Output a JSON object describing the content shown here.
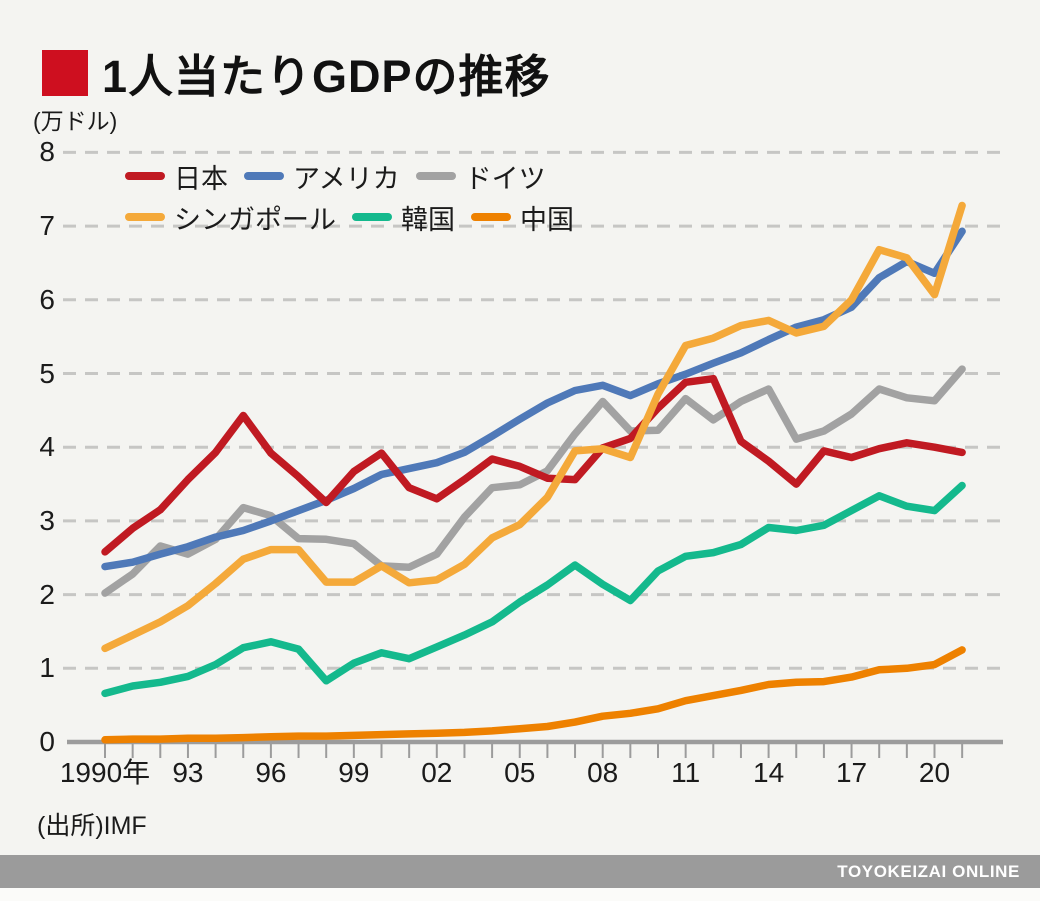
{
  "page": {
    "title": "1人当たりGDPの推移",
    "y_axis_unit": "(万ドル)",
    "source": "(出所)IMF",
    "footer_brand": "TOYOKEIZAI ONLINE"
  },
  "colors": {
    "title_bullet": "#ce0f1f",
    "background": "#f4f4f1",
    "footer_bar": "#9b9b9b",
    "grid": "#c6c6c4",
    "axis": "#9c9c9c",
    "text": "#1b1b1b"
  },
  "chart_data": {
    "type": "line",
    "title": "1人当たりGDPの推移",
    "ylabel": "(万ドル)",
    "xlabel": "",
    "source": "(出所)IMF",
    "ylim": [
      0,
      8
    ],
    "y_ticks": [
      0,
      1,
      2,
      3,
      4,
      5,
      6,
      7,
      8
    ],
    "grid": "dashed-horizontal",
    "legend_position": "top-left-inside",
    "x": [
      1990,
      1991,
      1992,
      1993,
      1994,
      1995,
      1996,
      1997,
      1998,
      1999,
      2000,
      2001,
      2002,
      2003,
      2004,
      2005,
      2006,
      2007,
      2008,
      2009,
      2010,
      2011,
      2012,
      2013,
      2014,
      2015,
      2016,
      2017,
      2018,
      2019,
      2020,
      2021
    ],
    "x_tick_labels": [
      "1990年",
      "93",
      "96",
      "99",
      "02",
      "05",
      "08",
      "11",
      "14",
      "17",
      "20"
    ],
    "x_tick_step": 3,
    "series": [
      {
        "name": "日本",
        "color": "#c01a22",
        "values": [
          2.58,
          2.9,
          3.15,
          3.56,
          3.93,
          4.43,
          3.92,
          3.6,
          3.25,
          3.67,
          3.92,
          3.45,
          3.3,
          3.56,
          3.84,
          3.74,
          3.58,
          3.56,
          3.99,
          4.12,
          4.53,
          4.88,
          4.93,
          4.08,
          3.81,
          3.5,
          3.95,
          3.86,
          3.98,
          4.06,
          4.0,
          3.93
        ]
      },
      {
        "name": "アメリカ",
        "color": "#4f79b8",
        "values": [
          2.38,
          2.44,
          2.55,
          2.65,
          2.78,
          2.87,
          3.0,
          3.14,
          3.28,
          3.44,
          3.63,
          3.71,
          3.79,
          3.93,
          4.15,
          4.38,
          4.6,
          4.77,
          4.84,
          4.7,
          4.86,
          4.99,
          5.14,
          5.28,
          5.46,
          5.63,
          5.73,
          5.9,
          6.3,
          6.52,
          6.36,
          6.93
        ]
      },
      {
        "name": "ドイツ",
        "color": "#a2a2a2",
        "values": [
          2.02,
          2.28,
          2.66,
          2.55,
          2.75,
          3.18,
          3.07,
          2.76,
          2.75,
          2.69,
          2.39,
          2.37,
          2.55,
          3.05,
          3.45,
          3.49,
          3.68,
          4.18,
          4.62,
          4.22,
          4.23,
          4.66,
          4.37,
          4.62,
          4.79,
          4.11,
          4.22,
          4.45,
          4.79,
          4.67,
          4.63,
          5.06
        ]
      },
      {
        "name": "シンガポール",
        "color": "#f4a93a",
        "values": [
          1.27,
          1.45,
          1.63,
          1.85,
          2.15,
          2.48,
          2.61,
          2.61,
          2.17,
          2.17,
          2.39,
          2.16,
          2.2,
          2.41,
          2.77,
          2.95,
          3.32,
          3.95,
          3.98,
          3.86,
          4.72,
          5.38,
          5.48,
          5.65,
          5.72,
          5.55,
          5.64,
          6.0,
          6.68,
          6.57,
          6.07,
          7.28
        ]
      },
      {
        "name": "韓国",
        "color": "#14b98d",
        "values": [
          0.66,
          0.76,
          0.81,
          0.89,
          1.05,
          1.28,
          1.36,
          1.26,
          0.83,
          1.07,
          1.21,
          1.13,
          1.29,
          1.45,
          1.63,
          1.9,
          2.13,
          2.4,
          2.14,
          1.92,
          2.32,
          2.52,
          2.57,
          2.68,
          2.91,
          2.87,
          2.94,
          3.14,
          3.34,
          3.2,
          3.14,
          3.48
        ]
      },
      {
        "name": "中国",
        "color": "#ee8100",
        "values": [
          0.03,
          0.04,
          0.04,
          0.05,
          0.05,
          0.06,
          0.07,
          0.08,
          0.08,
          0.09,
          0.1,
          0.11,
          0.12,
          0.13,
          0.15,
          0.18,
          0.21,
          0.27,
          0.35,
          0.39,
          0.45,
          0.56,
          0.63,
          0.7,
          0.78,
          0.81,
          0.82,
          0.88,
          0.98,
          1.0,
          1.05,
          1.25
        ]
      }
    ]
  }
}
